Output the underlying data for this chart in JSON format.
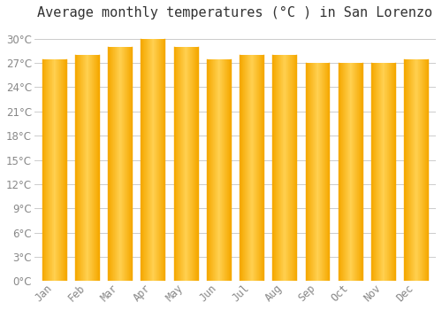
{
  "title": "Average monthly temperatures (°C ) in San Lorenzo",
  "months": [
    "Jan",
    "Feb",
    "Mar",
    "Apr",
    "May",
    "Jun",
    "Jul",
    "Aug",
    "Sep",
    "Oct",
    "Nov",
    "Dec"
  ],
  "values": [
    27.5,
    28.0,
    29.0,
    30.0,
    29.0,
    27.5,
    28.0,
    28.0,
    27.0,
    27.0,
    27.0,
    27.5
  ],
  "bar_color_left": "#F5A800",
  "bar_color_center": "#FFD050",
  "bar_color_right": "#F5A800",
  "background_color": "#FFFFFF",
  "grid_color": "#CCCCCC",
  "ylim": [
    0,
    31.5
  ],
  "yticks": [
    0,
    3,
    6,
    9,
    12,
    15,
    18,
    21,
    24,
    27,
    30
  ],
  "title_fontsize": 11,
  "tick_fontsize": 8.5,
  "title_color": "#333333",
  "tick_color": "#888888"
}
